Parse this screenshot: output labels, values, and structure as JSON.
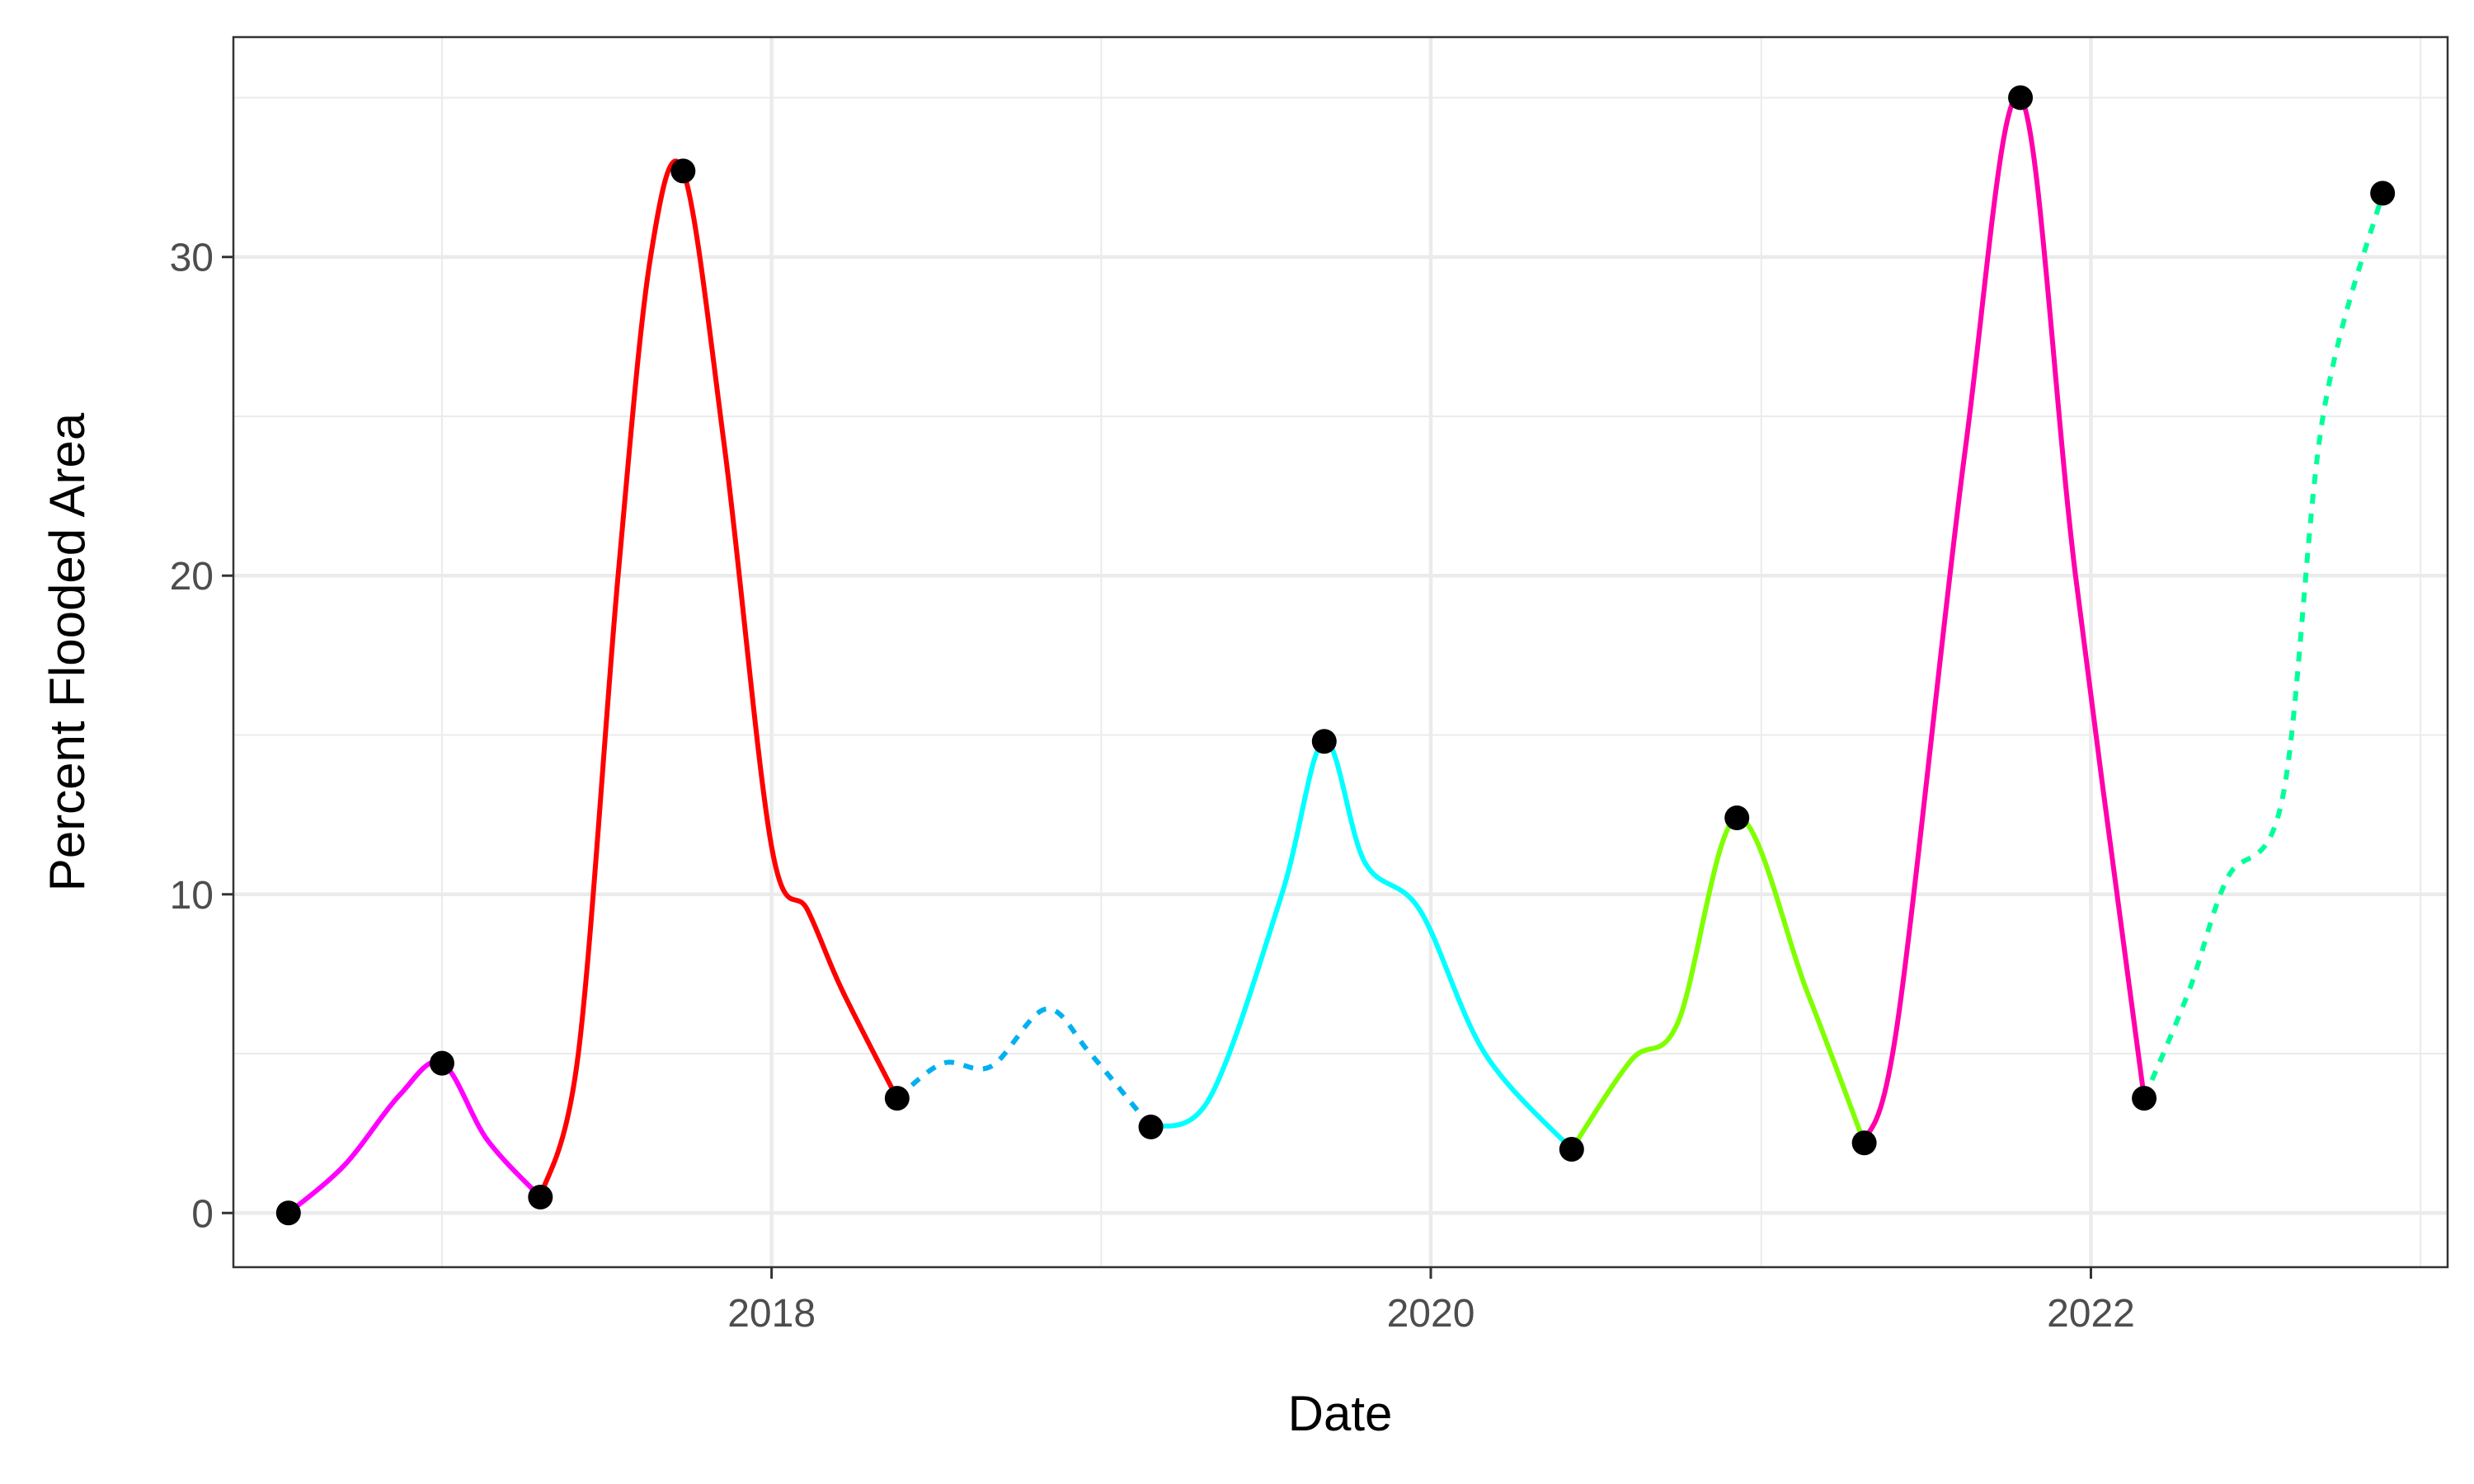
{
  "chart_data": {
    "type": "line",
    "xlabel": "Date",
    "ylabel": "Percent Flooded Area",
    "xlim": [
      "2016-05-15",
      "2023-01-31"
    ],
    "ylim": [
      -1.7,
      36.9
    ],
    "x_ticks": [
      {
        "label": "2018",
        "date": "2018-01-01"
      },
      {
        "label": "2020",
        "date": "2020-01-01"
      },
      {
        "label": "2022",
        "date": "2022-01-01"
      }
    ],
    "x_minor_ticks": [
      "2017-01-01",
      "2019-01-01",
      "2021-01-01",
      "2023-01-01"
    ],
    "y_ticks": [
      0,
      10,
      20,
      30
    ],
    "y_minor_ticks": [
      5,
      15,
      25,
      35
    ],
    "grid": true,
    "points": [
      {
        "date": "2016-07-15",
        "value": 0.0
      },
      {
        "date": "2017-01-01",
        "value": 4.7
      },
      {
        "date": "2017-04-20",
        "value": 0.5
      },
      {
        "date": "2017-09-25",
        "value": 32.7
      },
      {
        "date": "2018-05-20",
        "value": 3.6
      },
      {
        "date": "2019-02-25",
        "value": 2.7
      },
      {
        "date": "2019-09-05",
        "value": 14.8
      },
      {
        "date": "2020-06-05",
        "value": 2.0
      },
      {
        "date": "2020-12-05",
        "value": 12.4
      },
      {
        "date": "2021-04-25",
        "value": 2.2
      },
      {
        "date": "2021-10-15",
        "value": 35.0
      },
      {
        "date": "2022-03-01",
        "value": 3.6
      },
      {
        "date": "2022-11-20",
        "value": 32.0
      }
    ],
    "series": [
      {
        "color": "#ff00ff",
        "dashed": false,
        "x": [
          "2016-07-15",
          "2016-09-15",
          "2016-11-15",
          "2017-01-01",
          "2017-02-20",
          "2017-04-20"
        ],
        "y": [
          0.0,
          1.5,
          3.7,
          4.7,
          2.3,
          0.5
        ]
      },
      {
        "color": "#ff0000",
        "dashed": false,
        "x": [
          "2017-04-20",
          "2017-06-01",
          "2017-07-15",
          "2017-08-20",
          "2017-09-25",
          "2017-11-10",
          "2018-01-01",
          "2018-02-10",
          "2018-03-20",
          "2018-05-20"
        ],
        "y": [
          0.5,
          5.0,
          20.0,
          30.0,
          32.7,
          24.0,
          11.5,
          9.5,
          7.0,
          3.6
        ]
      },
      {
        "color": "#00b0f0",
        "dashed": true,
        "x": [
          "2018-05-20",
          "2018-07-10",
          "2018-09-01",
          "2018-11-01",
          "2018-12-20",
          "2019-02-25"
        ],
        "y": [
          3.6,
          4.7,
          4.6,
          6.4,
          5.0,
          2.7
        ]
      },
      {
        "color": "#00ffff",
        "dashed": false,
        "x": [
          "2019-02-25",
          "2019-05-01",
          "2019-07-20",
          "2019-09-05",
          "2019-10-20",
          "2019-12-20",
          "2020-03-01",
          "2020-06-05"
        ],
        "y": [
          2.7,
          3.6,
          10.0,
          14.8,
          11.0,
          9.5,
          5.0,
          2.0
        ]
      },
      {
        "color": "#80ff00",
        "dashed": false,
        "x": [
          "2020-06-05",
          "2020-08-10",
          "2020-10-01",
          "2020-12-05",
          "2021-02-20",
          "2021-04-25"
        ],
        "y": [
          2.0,
          4.8,
          6.0,
          12.4,
          7.0,
          2.2
        ]
      },
      {
        "color": "#ff00aa",
        "dashed": false,
        "x": [
          "2021-04-25",
          "2021-06-01",
          "2021-08-15",
          "2021-10-15",
          "2021-12-15",
          "2022-03-01"
        ],
        "y": [
          2.2,
          6.0,
          24.0,
          35.0,
          20.0,
          3.6
        ]
      },
      {
        "color": "#00ff99",
        "dashed": true,
        "x": [
          "2022-03-01",
          "2022-04-20",
          "2022-06-01",
          "2022-08-01",
          "2022-09-15",
          "2022-11-20"
        ],
        "y": [
          3.6,
          7.0,
          10.5,
          13.0,
          25.0,
          32.0
        ]
      }
    ]
  }
}
